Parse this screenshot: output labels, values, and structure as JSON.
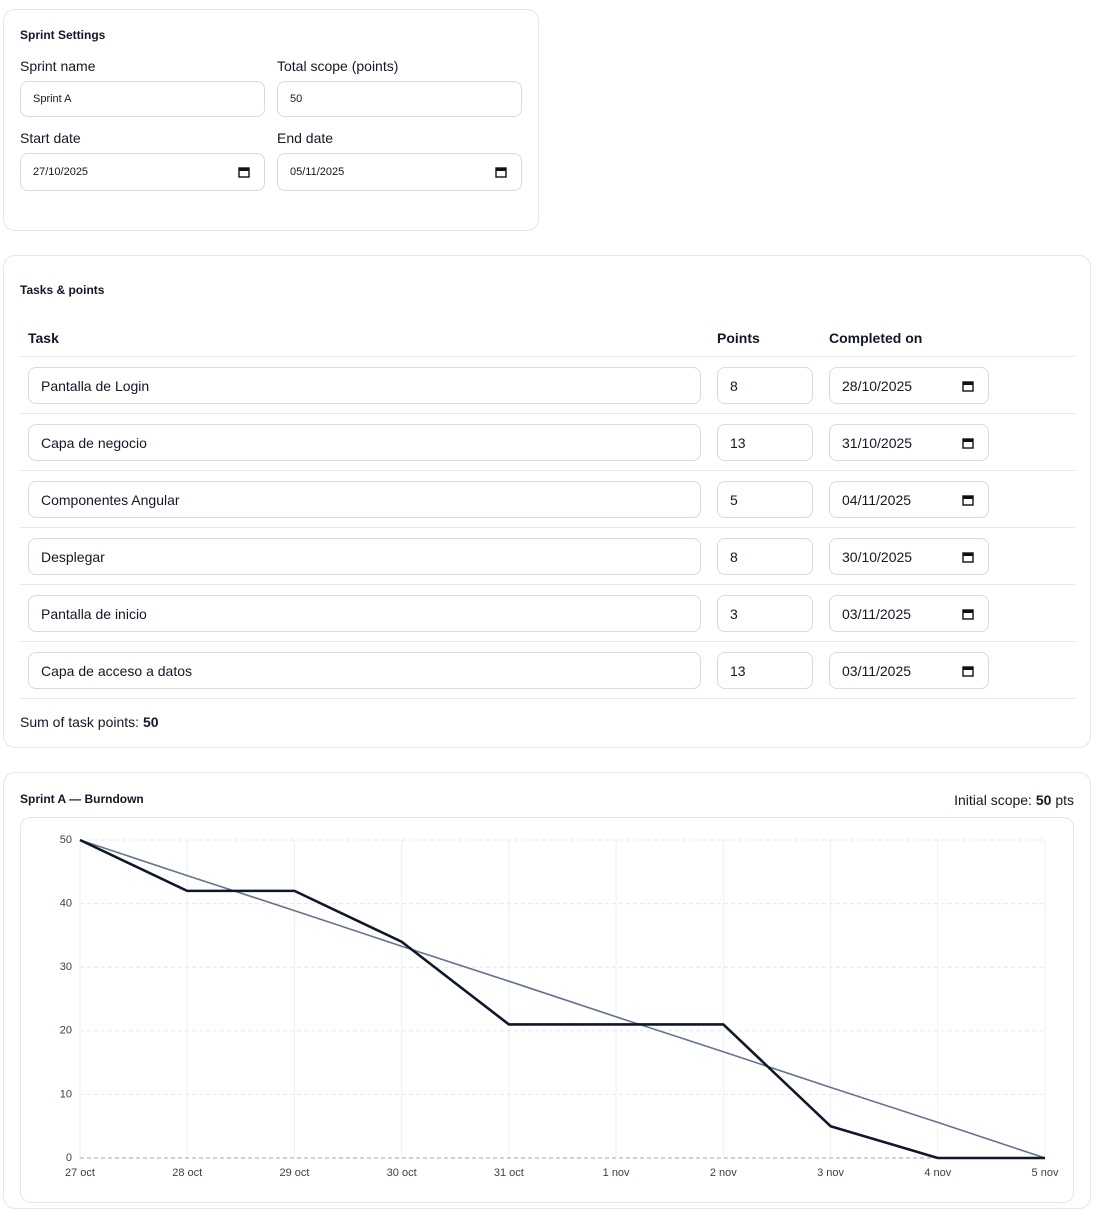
{
  "settings": {
    "title": "Sprint Settings",
    "fields": [
      {
        "label": "Sprint name",
        "value": "Sprint A"
      },
      {
        "label": "Total scope (points)",
        "value": 50
      },
      {
        "label": "Start date",
        "value": "27/10/2025"
      },
      {
        "label": "End date",
        "value": "05/11/2025"
      }
    ]
  },
  "tasks": {
    "title": "Tasks & points",
    "headers": [
      "Task",
      "Points",
      "Completed on"
    ],
    "rows": [
      [
        "Pantalla de Login",
        8,
        "28/10/2025"
      ],
      [
        "Capa de negocio",
        13,
        "31/10/2025"
      ],
      [
        "Componentes Angular",
        5,
        "04/11/2025"
      ],
      [
        "Desplegar",
        8,
        "30/10/2025"
      ],
      [
        "Pantalla de inicio",
        3,
        "03/11/2025"
      ],
      [
        "Capa de acceso a datos",
        13,
        "03/11/2025"
      ]
    ],
    "sum_label": "Sum of task points:",
    "sum": 50
  },
  "burndown": {
    "scope_label": "Initial scope:",
    "scope": 50,
    "scope_unit": "pts"
  },
  "chart_data": {
    "type": "line",
    "title": "Sprint A — Burndown",
    "categories": [
      "27 oct",
      "28 oct",
      "29 oct",
      "30 oct",
      "31 oct",
      "1 nov",
      "2 nov",
      "3 nov",
      "4 nov",
      "5 nov"
    ],
    "series": [
      {
        "color": "#64748b",
        "values": [
          50,
          44.4,
          38.9,
          33.3,
          27.8,
          22.2,
          16.7,
          11.1,
          5.6,
          0
        ]
      },
      {
        "color": "#0f172a",
        "values": [
          50,
          42,
          42,
          34,
          21,
          21,
          21,
          5,
          0,
          0
        ]
      }
    ],
    "ylim": [
      0,
      50
    ],
    "yticks": [
      0,
      10,
      20,
      30,
      40,
      50
    ],
    "grid": true
  }
}
